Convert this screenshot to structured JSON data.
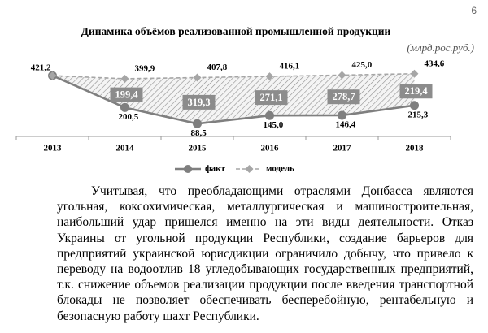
{
  "page_number": "6",
  "chart_data": {
    "type": "line",
    "title": "Динамика объёмов реализованной промышленной продукции",
    "subtitle": "(млрд.рос.руб.)",
    "categories": [
      "2013",
      "2014",
      "2015",
      "2016",
      "2017",
      "2018"
    ],
    "ylim": [
      0,
      450
    ],
    "series": [
      {
        "name": "факт",
        "color": "#7f7f7f",
        "values": [
          421.2,
          200.5,
          88.5,
          145.0,
          146.4,
          215.3
        ],
        "value_labels": [
          "421,2",
          "200,5",
          "88,5",
          "145,0",
          "146,4",
          "215,3"
        ]
      },
      {
        "name": "модель",
        "color": "#a6a6a6",
        "values": [
          421.2,
          399.9,
          407.8,
          416.1,
          425.0,
          434.6
        ],
        "value_labels": [
          null,
          "399,9",
          "407,8",
          "416,1",
          "425,0",
          "434,6"
        ]
      }
    ],
    "differences": {
      "values": [
        null,
        199.4,
        319.3,
        271.1,
        278.7,
        219.4
      ],
      "value_labels": [
        null,
        "199,4",
        "319,3",
        "271,1",
        "278,7",
        "219,4"
      ]
    }
  },
  "body": {
    "lines": [
      "Учитывая, что преобладающими отраслями Донбасса являются",
      "угольная, коксохимическая, металлургическая и машиностроительная,",
      "наибольший удар пришелся именно на эти виды деятельности. Отказ",
      "Украины от угольной продукции Республики, создание барьеров для",
      "предприятий украинской юрисдикции ограничило добычу, что привело к",
      "переводу на водоотлив 18 угледобывающих государственных предприятий,",
      "т.к. снижение объемов реализации продукции после введения транспортной",
      "блокады не позволяет обеспечивать бесперебойную, рентабельную и",
      "безопасную работу шахт Республики."
    ]
  }
}
